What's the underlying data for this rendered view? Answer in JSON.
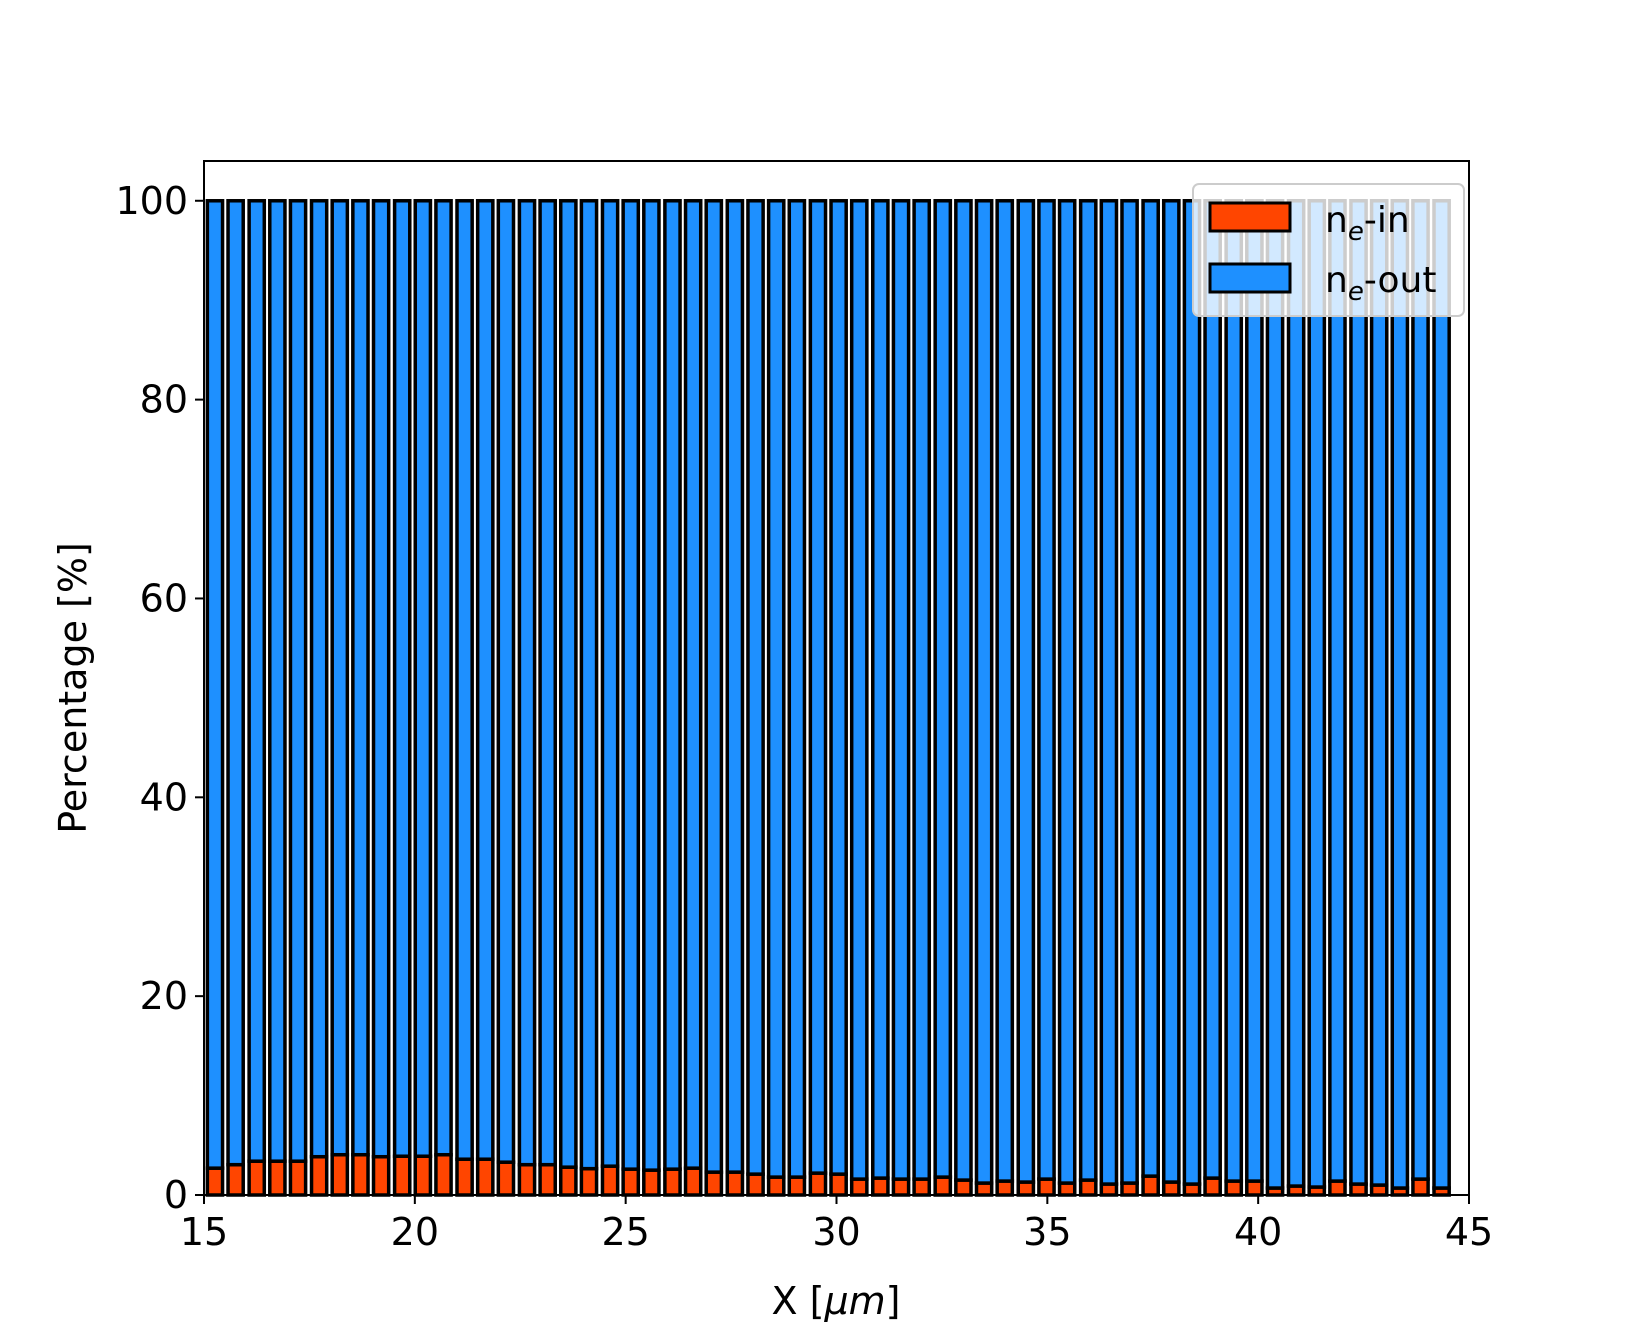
{
  "chart_data": {
    "type": "bar",
    "stacked": true,
    "xlabel": "X  [μm]",
    "xlabel_parts": {
      "main": "X  [",
      "unit": "μm",
      "close": "]"
    },
    "ylabel": "Percentage  [%]",
    "xlim": [
      15,
      45
    ],
    "ylim": [
      0,
      104
    ],
    "xticks": [
      "15",
      "20",
      "25",
      "30",
      "35",
      "40",
      "45"
    ],
    "yticks": [
      "0",
      "20",
      "40",
      "60",
      "80",
      "100"
    ],
    "grid": false,
    "legend_position": "top-right",
    "bar_width": 0.36,
    "x": [
      15.26,
      15.75,
      16.25,
      16.74,
      17.23,
      17.73,
      18.22,
      18.71,
      19.2,
      19.7,
      20.19,
      20.68,
      21.18,
      21.67,
      22.16,
      22.66,
      23.15,
      23.64,
      24.13,
      24.63,
      25.12,
      25.61,
      26.11,
      26.6,
      27.09,
      27.59,
      28.08,
      28.57,
      29.06,
      29.56,
      30.05,
      30.54,
      31.04,
      31.53,
      32.02,
      32.52,
      33.01,
      33.5,
      33.99,
      34.49,
      34.98,
      35.47,
      35.97,
      36.46,
      36.95,
      37.45,
      37.94,
      38.43,
      38.92,
      39.42,
      39.91,
      40.4,
      40.9,
      41.39,
      41.88,
      42.38,
      42.87,
      43.36,
      43.85,
      44.35
    ],
    "series": [
      {
        "name": "n_e-in",
        "legend": {
          "base": "n",
          "sub": "e",
          "suffix": "-in"
        },
        "color": "#FF4500",
        "values": [
          2.7,
          3.05,
          3.4,
          3.4,
          3.4,
          3.85,
          4.05,
          4.05,
          3.85,
          3.9,
          3.9,
          4.05,
          3.6,
          3.6,
          3.3,
          3.05,
          3.05,
          2.8,
          2.65,
          2.9,
          2.6,
          2.5,
          2.6,
          2.7,
          2.3,
          2.3,
          2.1,
          1.8,
          1.8,
          2.2,
          2.1,
          1.6,
          1.7,
          1.6,
          1.6,
          1.8,
          1.5,
          1.2,
          1.4,
          1.3,
          1.6,
          1.2,
          1.5,
          1.1,
          1.2,
          1.9,
          1.3,
          1.1,
          1.7,
          1.4,
          1.4,
          0.7,
          0.9,
          0.8,
          1.4,
          1.1,
          1.0,
          0.7,
          1.6,
          0.7
        ]
      },
      {
        "name": "n_e-out",
        "legend": {
          "base": "n",
          "sub": "e",
          "suffix": "-out"
        },
        "color": "#1E90FF",
        "values": "remainder_to_100"
      }
    ]
  }
}
